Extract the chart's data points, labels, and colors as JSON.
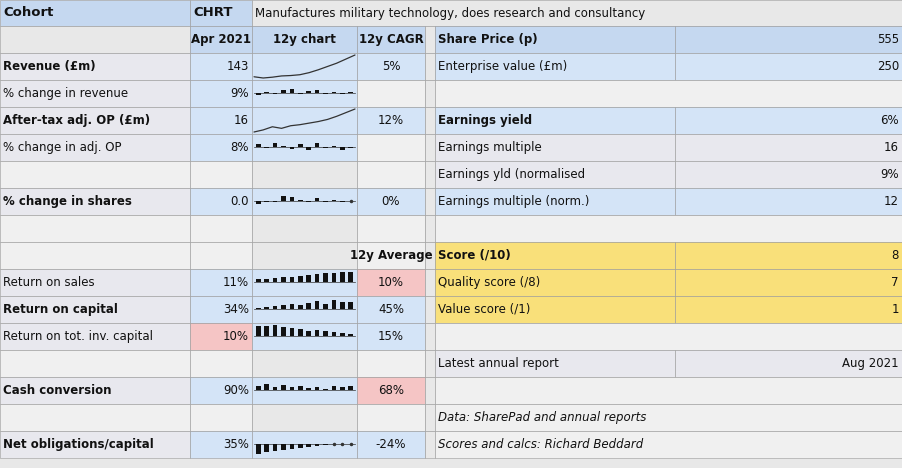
{
  "title_left": "Cohort",
  "title_ticker": "CHRT",
  "title_desc": "Manufactures military technology, does research and consultancy",
  "bg_white": "#ffffff",
  "bg_light_gray": "#eeeeee",
  "bg_blue_header": "#c5d8f0",
  "bg_blue_cell": "#d4e4f7",
  "bg_pink": "#f5c5c5",
  "bg_yellow": "#f9e07a",
  "fig_bg": "#e8e8e8",
  "rows": [
    {
      "label": "Revenue (£m)",
      "val": "143",
      "chart": "line_up",
      "cagr": "5%",
      "bold": true,
      "label_bg": "gray",
      "val_bg": "blue",
      "chart_bg": "blue",
      "cagr_bg": "blue"
    },
    {
      "label": "% change in revenue",
      "val": "9%",
      "chart": "bar_rev",
      "cagr": "",
      "bold": false,
      "label_bg": "gray",
      "val_bg": "blue",
      "chart_bg": "blue",
      "cagr_bg": "white"
    },
    {
      "label": "After-tax adj. OP (£m)",
      "val": "16",
      "chart": "line_op",
      "cagr": "12%",
      "bold": true,
      "label_bg": "gray",
      "val_bg": "blue",
      "chart_bg": "blue",
      "cagr_bg": "blue"
    },
    {
      "label": "% change in adj. OP",
      "val": "8%",
      "chart": "bar_op",
      "cagr": "",
      "bold": false,
      "label_bg": "gray",
      "val_bg": "blue",
      "chart_bg": "blue",
      "cagr_bg": "white"
    },
    {
      "label": "",
      "val": "",
      "chart": "",
      "cagr": "",
      "bold": false,
      "label_bg": "white",
      "val_bg": "white",
      "chart_bg": "white",
      "cagr_bg": "white"
    },
    {
      "label": "% change in shares",
      "val": "0.0",
      "chart": "bar_shares",
      "cagr": "0%",
      "bold": true,
      "label_bg": "gray",
      "val_bg": "blue",
      "chart_bg": "blue",
      "cagr_bg": "blue"
    },
    {
      "label": "",
      "val": "",
      "chart": "",
      "cagr": "",
      "bold": false,
      "label_bg": "white",
      "val_bg": "white",
      "chart_bg": "white",
      "cagr_bg": "white"
    },
    {
      "label": "",
      "val": "",
      "chart": "",
      "cagr": "12y Average",
      "bold": true,
      "label_bg": "white",
      "val_bg": "white",
      "chart_bg": "white",
      "cagr_bg": "white"
    },
    {
      "label": "Return on sales",
      "val": "11%",
      "chart": "bar_ros",
      "cagr": "10%",
      "bold": false,
      "label_bg": "gray",
      "val_bg": "blue",
      "chart_bg": "blue",
      "cagr_bg": "pink"
    },
    {
      "label": "Return on capital",
      "val": "34%",
      "chart": "bar_roc",
      "cagr": "45%",
      "bold": true,
      "label_bg": "gray",
      "val_bg": "blue",
      "chart_bg": "blue",
      "cagr_bg": "blue"
    },
    {
      "label": "Return on tot. inv. capital",
      "val": "10%",
      "chart": "bar_rotic",
      "cagr": "15%",
      "bold": false,
      "label_bg": "gray",
      "val_bg": "pink",
      "chart_bg": "blue",
      "cagr_bg": "blue"
    },
    {
      "label": "",
      "val": "",
      "chart": "",
      "cagr": "",
      "bold": false,
      "label_bg": "white",
      "val_bg": "white",
      "chart_bg": "white",
      "cagr_bg": "white"
    },
    {
      "label": "Cash conversion",
      "val": "90%",
      "chart": "bar_cash",
      "cagr": "68%",
      "bold": true,
      "label_bg": "gray",
      "val_bg": "blue",
      "chart_bg": "blue",
      "cagr_bg": "pink"
    },
    {
      "label": "",
      "val": "",
      "chart": "",
      "cagr": "",
      "bold": false,
      "label_bg": "white",
      "val_bg": "white",
      "chart_bg": "white",
      "cagr_bg": "white"
    },
    {
      "label": "Net obligations/capital",
      "val": "35%",
      "chart": "bar_neg",
      "cagr": "-24%",
      "bold": true,
      "label_bg": "gray",
      "val_bg": "blue",
      "chart_bg": "blue",
      "cagr_bg": "blue"
    }
  ],
  "right_rows": [
    {
      "label": "Enterprise value (£m)",
      "val": "250",
      "bold": false,
      "italic": false,
      "label_bg": "blue",
      "val_bg": "blue"
    },
    {
      "label": "",
      "val": "",
      "bold": false,
      "italic": false,
      "label_bg": "white",
      "val_bg": "white"
    },
    {
      "label": "Earnings yield",
      "val": "6%",
      "bold": true,
      "italic": false,
      "label_bg": "blue",
      "val_bg": "blue"
    },
    {
      "label": "Earnings multiple",
      "val": "16",
      "bold": false,
      "italic": false,
      "label_bg": "gray",
      "val_bg": "gray"
    },
    {
      "label": "Earnings yld (normalised",
      "val": "9%",
      "bold": false,
      "italic": false,
      "label_bg": "gray",
      "val_bg": "gray"
    },
    {
      "label": "Earnings multiple (norm.)",
      "val": "12",
      "bold": false,
      "italic": false,
      "label_bg": "blue",
      "val_bg": "blue"
    },
    {
      "label": "",
      "val": "",
      "bold": false,
      "italic": false,
      "label_bg": "white",
      "val_bg": "white"
    },
    {
      "label": "Score (/10)",
      "val": "8",
      "bold": true,
      "italic": false,
      "label_bg": "yellow",
      "val_bg": "yellow"
    },
    {
      "label": "Quality score (/8)",
      "val": "7",
      "bold": false,
      "italic": false,
      "label_bg": "yellow",
      "val_bg": "yellow"
    },
    {
      "label": "Value score (/1)",
      "val": "1",
      "bold": false,
      "italic": false,
      "label_bg": "yellow",
      "val_bg": "yellow"
    },
    {
      "label": "",
      "val": "",
      "bold": false,
      "italic": false,
      "label_bg": "white",
      "val_bg": "white"
    },
    {
      "label": "Latest annual report",
      "val": "Aug 2021",
      "bold": false,
      "italic": false,
      "label_bg": "gray",
      "val_bg": "gray"
    },
    {
      "label": "",
      "val": "",
      "bold": false,
      "italic": false,
      "label_bg": "white",
      "val_bg": "white"
    },
    {
      "label": "Data: SharePad and annual reports",
      "val": "",
      "bold": false,
      "italic": true,
      "label_bg": "white",
      "val_bg": "white"
    },
    {
      "label": "Scores and calcs: Richard Beddard",
      "val": "",
      "bold": false,
      "italic": true,
      "label_bg": "white",
      "val_bg": "white"
    }
  ],
  "sparkline_data": {
    "line_up": [
      0.25,
      0.22,
      0.24,
      0.27,
      0.28,
      0.3,
      0.35,
      0.42,
      0.5,
      0.58,
      0.68,
      0.78
    ],
    "line_op": [
      0.18,
      0.22,
      0.28,
      0.25,
      0.3,
      0.32,
      0.35,
      0.38,
      0.42,
      0.48,
      0.55,
      0.62
    ],
    "bar_rev": [
      -0.15,
      0.12,
      -0.08,
      0.25,
      0.35,
      -0.1,
      0.18,
      0.28,
      -0.12,
      0.09,
      -0.1,
      0.09
    ],
    "bar_op": [
      0.28,
      -0.12,
      0.38,
      0.1,
      -0.18,
      0.3,
      -0.25,
      0.38,
      -0.05,
      0.1,
      -0.25,
      -0.1
    ],
    "bar_shares": [
      -0.3,
      -0.08,
      -0.12,
      0.45,
      0.35,
      0.12,
      -0.08,
      0.22,
      -0.08,
      0.1,
      -0.05,
      0.02
    ],
    "bar_ros": [
      0.25,
      0.3,
      0.38,
      0.42,
      0.48,
      0.55,
      0.62,
      0.68,
      0.75,
      0.8,
      0.85,
      0.9
    ],
    "bar_roc": [
      0.1,
      0.18,
      0.25,
      0.32,
      0.4,
      0.35,
      0.55,
      0.68,
      0.48,
      0.78,
      0.58,
      0.65
    ],
    "bar_rotic": [
      0.85,
      0.9,
      1.0,
      0.82,
      0.7,
      0.58,
      0.48,
      0.55,
      0.45,
      0.38,
      0.28,
      0.2
    ],
    "bar_cash": [
      0.32,
      0.55,
      0.22,
      0.42,
      0.22,
      0.32,
      0.15,
      0.28,
      0.12,
      0.32,
      0.22,
      0.38
    ],
    "bar_neg": [
      -0.85,
      -0.75,
      -0.65,
      -0.55,
      -0.45,
      -0.35,
      -0.25,
      -0.15,
      -0.05,
      0.02,
      0.02,
      0.02
    ]
  }
}
